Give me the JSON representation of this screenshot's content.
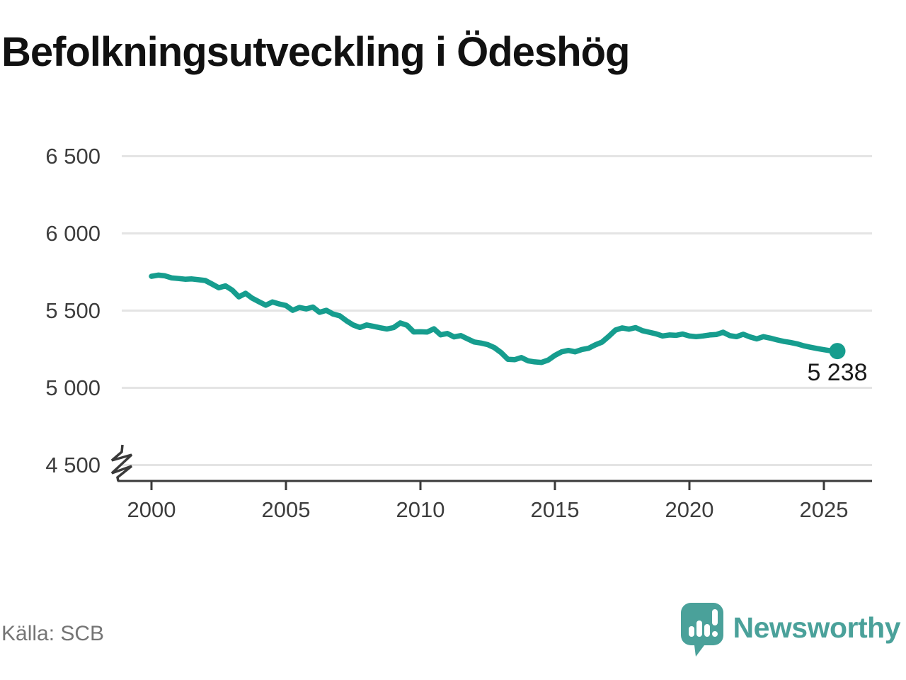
{
  "title": "Befolkningsutveckling i Ödeshög",
  "source": "Källa: SCB",
  "brand": {
    "name": "Newsworthy",
    "color": "#4aa19a",
    "logo_icon": "speech-bubble-bar-chart"
  },
  "colors": {
    "line": "#169d8e",
    "grid": "#e4e4e4",
    "axis": "#3a3a3a",
    "tick_text": "#3d3d3d",
    "annotation_text": "#1a1a1a"
  },
  "chart_data": {
    "type": "line",
    "title": "Befolkningsutveckling i Ödeshög",
    "xlabel": "",
    "ylabel": "",
    "grid": true,
    "axis_break_below": 4500,
    "ylim_display": [
      4500,
      6500
    ],
    "yticks": [
      {
        "value": 4500,
        "label": "4 500"
      },
      {
        "value": 5000,
        "label": "5 000"
      },
      {
        "value": 5500,
        "label": "5 500"
      },
      {
        "value": 6000,
        "label": "6 000"
      },
      {
        "value": 6500,
        "label": "6 500"
      }
    ],
    "xticks": [
      {
        "value": 2000,
        "label": "2000"
      },
      {
        "value": 2005,
        "label": "2005"
      },
      {
        "value": 2010,
        "label": "2010"
      },
      {
        "value": 2015,
        "label": "2015"
      },
      {
        "value": 2020,
        "label": "2020"
      },
      {
        "value": 2025,
        "label": "2025"
      }
    ],
    "series": [
      {
        "name": "Befolkning",
        "x_start": 2000.0,
        "x_step": 0.25,
        "x_end": 2025.5,
        "values": [
          5722,
          5730,
          5725,
          5712,
          5708,
          5703,
          5705,
          5700,
          5695,
          5672,
          5648,
          5660,
          5633,
          5589,
          5612,
          5580,
          5557,
          5535,
          5556,
          5543,
          5533,
          5502,
          5520,
          5511,
          5523,
          5489,
          5502,
          5478,
          5466,
          5434,
          5407,
          5391,
          5407,
          5398,
          5389,
          5381,
          5390,
          5420,
          5405,
          5362,
          5363,
          5361,
          5382,
          5343,
          5352,
          5330,
          5338,
          5317,
          5297,
          5290,
          5280,
          5260,
          5228,
          5185,
          5182,
          5196,
          5175,
          5168,
          5164,
          5180,
          5210,
          5233,
          5242,
          5233,
          5248,
          5256,
          5278,
          5296,
          5333,
          5374,
          5388,
          5380,
          5390,
          5370,
          5360,
          5350,
          5336,
          5342,
          5340,
          5348,
          5336,
          5331,
          5336,
          5342,
          5345,
          5360,
          5338,
          5331,
          5347,
          5330,
          5317,
          5331,
          5322,
          5311,
          5301,
          5294,
          5285,
          5272,
          5263,
          5254,
          5247,
          5240,
          5238
        ]
      }
    ],
    "last_point": {
      "label": "5 238",
      "value": 5238
    }
  }
}
